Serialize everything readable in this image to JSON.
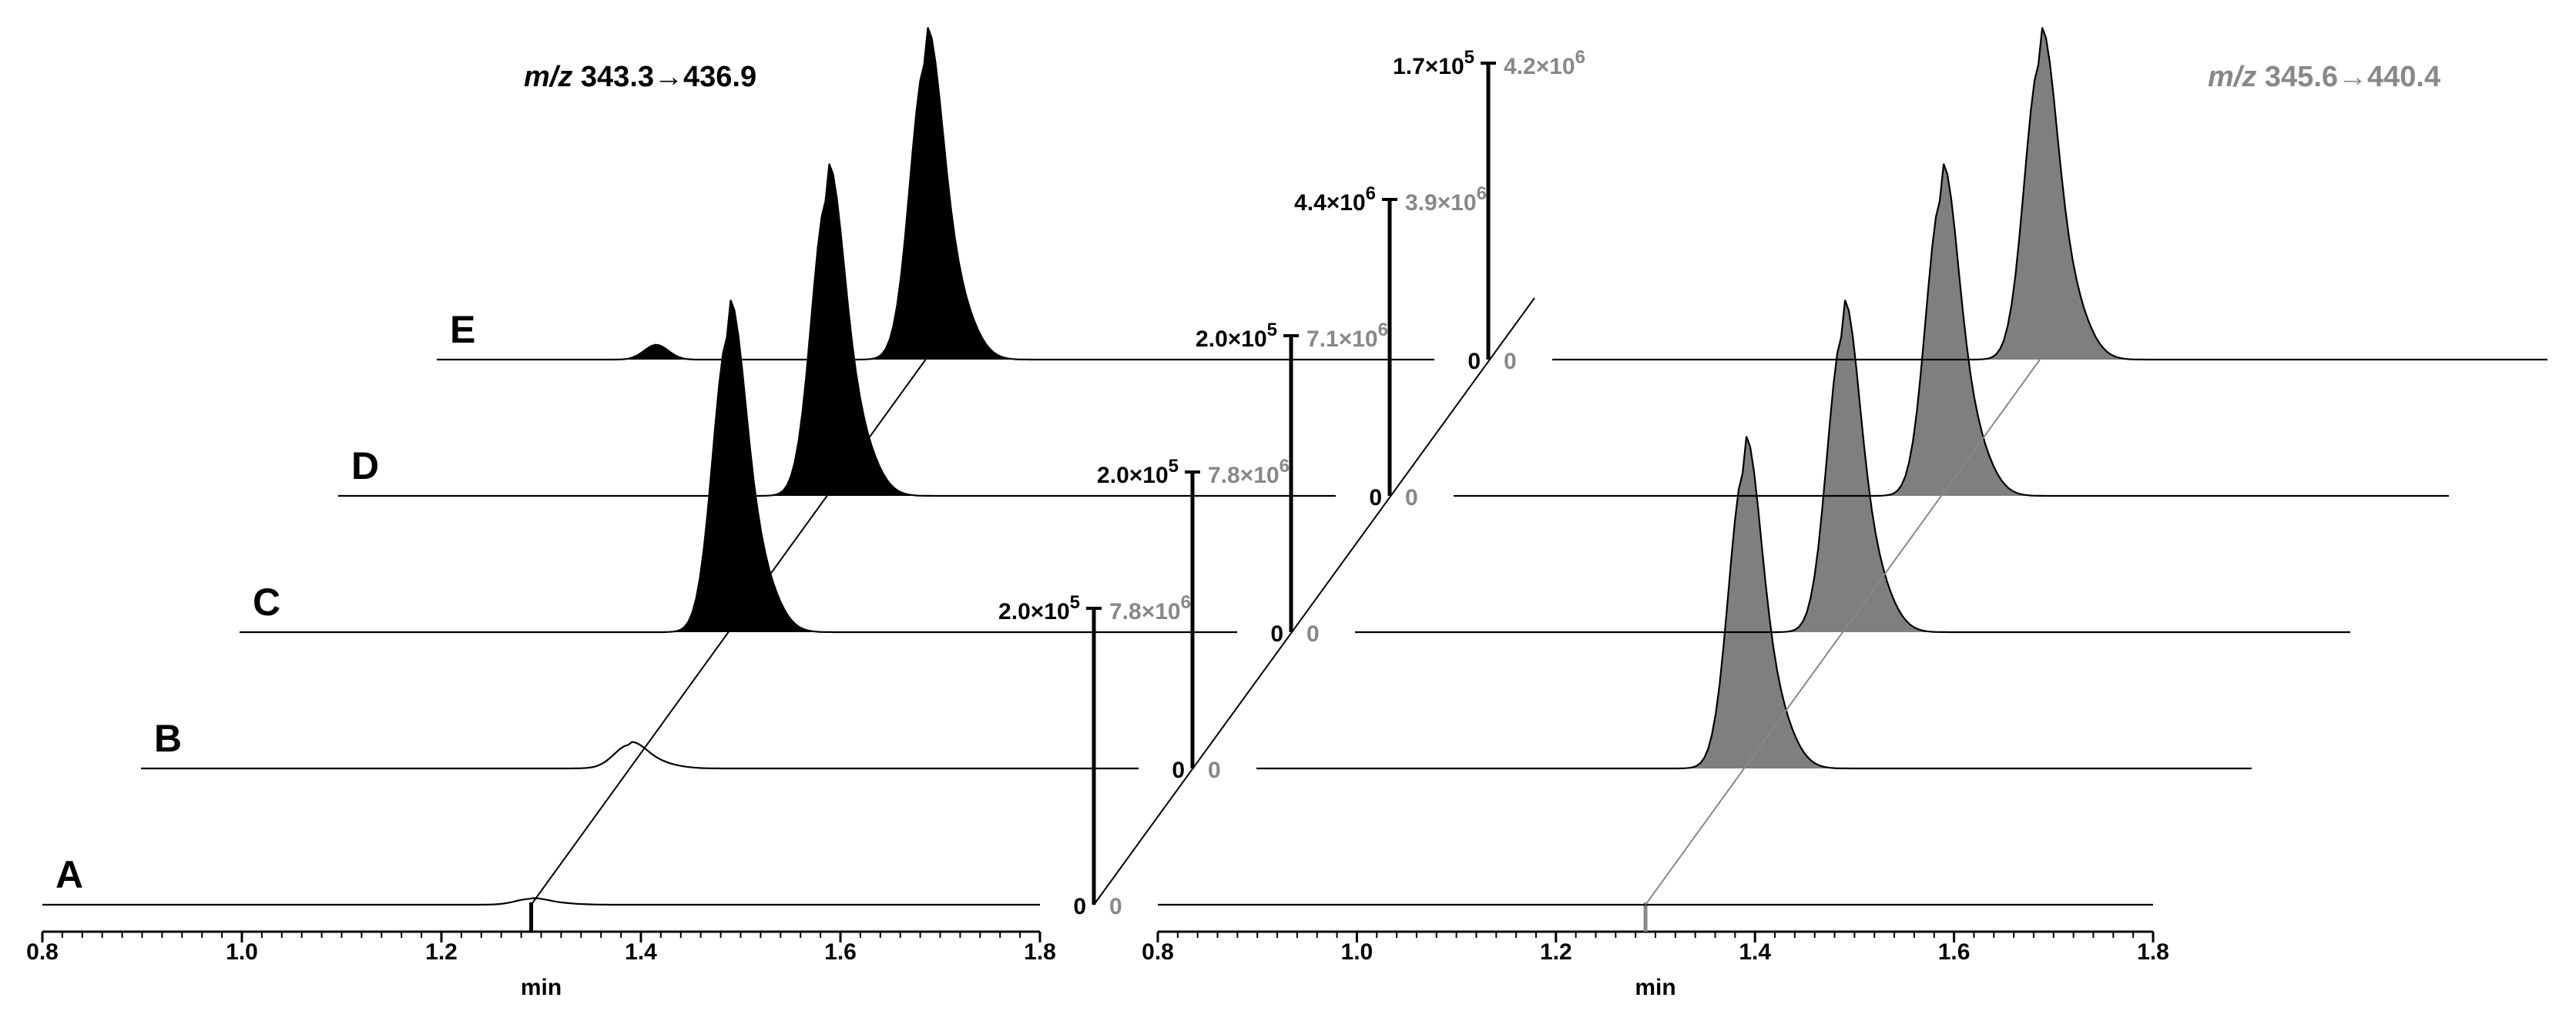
{
  "chart_data": {
    "type": "line",
    "description": "Stacked (waterfall) MRM chromatograms for samples A–E, two transitions side by side",
    "xlabel": "min",
    "xlim": [
      0.8,
      1.8
    ],
    "xticks": [
      "0.8",
      "1.0",
      "1.2",
      "1.4",
      "1.6",
      "1.8"
    ],
    "retention_marker_min": 1.29,
    "rows": [
      "A",
      "B",
      "C",
      "D",
      "E"
    ],
    "panels": [
      {
        "title_italic": "m/z",
        "title_rest": " 343.3→436.9",
        "color": "#000000",
        "fill": "#000000",
        "series": [
          {
            "name": "A",
            "peak_apex_min": 1.29,
            "relative_height": 0.02,
            "ymax": "2.0×10",
            "ymax_exp": "5"
          },
          {
            "name": "B",
            "peak_apex_min": 1.29,
            "relative_height": 0.08,
            "ymax": "2.0×10",
            "ymax_exp": "5"
          },
          {
            "name": "C",
            "peak_apex_min": 1.29,
            "relative_height": 1.0,
            "ymax": "2.0×10",
            "ymax_exp": "5"
          },
          {
            "name": "D",
            "peak_apex_min": 1.29,
            "relative_height": 1.0,
            "ymax": "4.4×10",
            "ymax_exp": "6"
          },
          {
            "name": "E",
            "peak_apex_min": 1.29,
            "relative_height": 1.0,
            "ymax": "1.7×10",
            "ymax_exp": "5",
            "minor_peak_min": 1.02,
            "minor_relative_height": 0.05
          }
        ]
      },
      {
        "title_italic": "m/z",
        "title_rest": " 345.6→440.4",
        "color": "#888888",
        "fill": "#7f7f7f",
        "series": [
          {
            "name": "A",
            "peak_apex_min": 1.29,
            "relative_height": 0.0,
            "ymax": "7.8×10",
            "ymax_exp": "6"
          },
          {
            "name": "B",
            "peak_apex_min": 1.29,
            "relative_height": 1.0,
            "ymax": "7.8×10",
            "ymax_exp": "6"
          },
          {
            "name": "C",
            "peak_apex_min": 1.29,
            "relative_height": 1.0,
            "ymax": "7.1×10",
            "ymax_exp": "6"
          },
          {
            "name": "D",
            "peak_apex_min": 1.29,
            "relative_height": 1.0,
            "ymax": "3.9×10",
            "ymax_exp": "6"
          },
          {
            "name": "E",
            "peak_apex_min": 1.29,
            "relative_height": 1.0,
            "ymax": "4.2×10",
            "ymax_exp": "6"
          }
        ]
      }
    ],
    "zero_label": "0"
  }
}
